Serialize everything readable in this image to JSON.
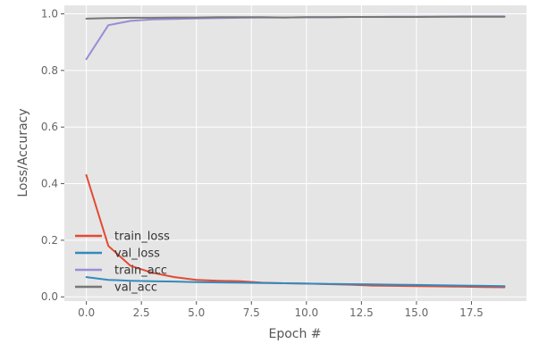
{
  "chart_data": {
    "type": "line",
    "style": "ggplot",
    "xlabel": "Epoch #",
    "ylabel": "Loss/Accuracy",
    "xlim": [
      -1,
      20
    ],
    "ylim": [
      -0.015,
      1.03
    ],
    "xticks": [
      0.0,
      2.5,
      5.0,
      7.5,
      10.0,
      12.5,
      15.0,
      17.5
    ],
    "xtick_labels": [
      "0.0",
      "2.5",
      "5.0",
      "7.5",
      "10.0",
      "12.5",
      "15.0",
      "17.5"
    ],
    "yticks": [
      0.0,
      0.2,
      0.4,
      0.6,
      0.8,
      1.0
    ],
    "ytick_labels": [
      "0.0",
      "0.2",
      "0.4",
      "0.6",
      "0.8",
      "1.0"
    ],
    "grid": true,
    "legend_position": "lower-left",
    "x": [
      0,
      1,
      2,
      3,
      4,
      5,
      6,
      7,
      8,
      9,
      10,
      11,
      12,
      13,
      14,
      15,
      16,
      17,
      18,
      19
    ],
    "series": [
      {
        "name": "train_loss",
        "color": "#e24a33",
        "values": [
          0.43,
          0.18,
          0.11,
          0.085,
          0.07,
          0.06,
          0.057,
          0.055,
          0.05,
          0.048,
          0.047,
          0.045,
          0.043,
          0.04,
          0.039,
          0.038,
          0.037,
          0.036,
          0.035,
          0.034
        ]
      },
      {
        "name": "val_loss",
        "color": "#348abd",
        "values": [
          0.07,
          0.06,
          0.057,
          0.055,
          0.054,
          0.052,
          0.051,
          0.05,
          0.049,
          0.048,
          0.047,
          0.046,
          0.045,
          0.044,
          0.043,
          0.042,
          0.041,
          0.04,
          0.039,
          0.038
        ]
      },
      {
        "name": "train_acc",
        "color": "#988ed5",
        "values": [
          0.84,
          0.96,
          0.975,
          0.98,
          0.982,
          0.984,
          0.985,
          0.986,
          0.987,
          0.987,
          0.988,
          0.988,
          0.989,
          0.989,
          0.99,
          0.99,
          0.99,
          0.991,
          0.991,
          0.991
        ]
      },
      {
        "name": "val_acc",
        "color": "#777777",
        "values": [
          0.983,
          0.985,
          0.986,
          0.986,
          0.987,
          0.987,
          0.988,
          0.988,
          0.988,
          0.987,
          0.988,
          0.988,
          0.989,
          0.989,
          0.989,
          0.989,
          0.99,
          0.99,
          0.99,
          0.99
        ]
      }
    ]
  }
}
